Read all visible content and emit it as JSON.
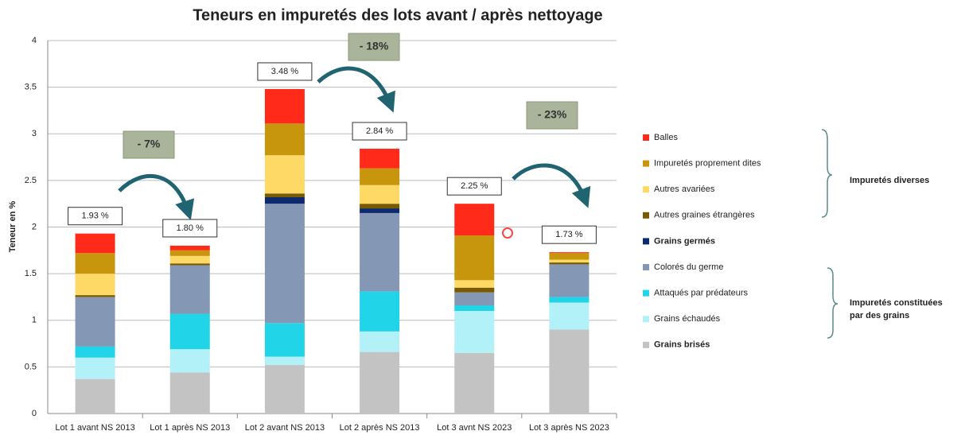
{
  "chart_data": {
    "type": "stacked_bar",
    "title": "Teneurs en impuretés des lots avant / après nettoyage",
    "y_label": "Teneur en %",
    "categories": [
      "Lot 1 avant NS 2013",
      "Lot 1 après NS 2013",
      "Lot 2 avant NS 2013",
      "Lot 2 après NS 2013",
      "Lot 3 avnt NS 2023",
      "Lot 3 après NS 2023"
    ],
    "series": [
      {
        "name": "Grains brisés",
        "color": "#c3c3c3",
        "values": [
          0.37,
          0.44,
          0.52,
          0.66,
          0.65,
          0.9
        ]
      },
      {
        "name": "Grains échaudés",
        "color": "#b3f1f8",
        "values": [
          0.23,
          0.25,
          0.09,
          0.22,
          0.45,
          0.29
        ]
      },
      {
        "name": "Attaqués par prédateurs",
        "color": "#22d4e8",
        "values": [
          0.12,
          0.38,
          0.36,
          0.43,
          0.06,
          0.06
        ]
      },
      {
        "name": "Colorés du germe",
        "color": "#8497b4",
        "values": [
          0.53,
          0.52,
          1.28,
          0.84,
          0.14,
          0.35
        ]
      },
      {
        "name": "Grains germés",
        "color": "#0d2a6e",
        "values": [
          0,
          0,
          0.07,
          0.05,
          0,
          0
        ]
      },
      {
        "name": "Autres graines étrangères",
        "color": "#7a5a00",
        "values": [
          0.02,
          0.02,
          0.04,
          0.05,
          0.05,
          0.02
        ]
      },
      {
        "name": "Autres avariées",
        "color": "#ffd966",
        "values": [
          0.23,
          0.08,
          0.41,
          0.2,
          0.08,
          0.03
        ]
      },
      {
        "name": "Impuretés proprement dites",
        "color": "#c8960c",
        "values": [
          0.22,
          0.06,
          0.34,
          0.18,
          0.48,
          0.07
        ]
      },
      {
        "name": "Balles",
        "color": "#ff2a1a",
        "values": [
          0.21,
          0.05,
          0.37,
          0.21,
          0.34,
          0.01
        ]
      }
    ],
    "totals": {
      "values": [
        1.93,
        1.8,
        3.48,
        2.84,
        2.25,
        1.73
      ],
      "value_labels": [
        "1.93 %",
        "1.80 %",
        "3.48 %",
        "2.84 %",
        "2.25 %",
        "1.73 %"
      ]
    },
    "annotations": [
      "- 7%",
      "- 18%",
      "- 23%"
    ],
    "groups": [
      "Impuretés diverses",
      "Impuretés constituées par des grains"
    ],
    "ylim": [
      0,
      4
    ],
    "yticks": [
      0,
      0.5,
      1,
      1.5,
      2,
      2.5,
      3,
      3.5,
      4
    ],
    "grid": true
  }
}
